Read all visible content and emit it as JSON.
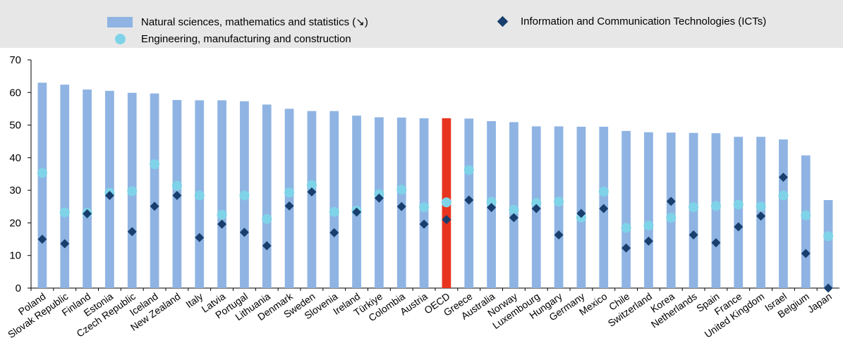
{
  "chart_data": {
    "type": "bar",
    "title": "",
    "xlabel": "",
    "ylabel": "",
    "ylim": [
      0,
      70
    ],
    "yticks": [
      0,
      10,
      20,
      30,
      40,
      50,
      60,
      70
    ],
    "grid": false,
    "legend_position": "top",
    "categories": [
      "Poland",
      "Slovak Republic",
      "Finland",
      "Estonia",
      "Czech Republic",
      "Iceland",
      "New Zealand",
      "Italy",
      "Latvia",
      "Portugal",
      "Lithuania",
      "Denmark",
      "Sweden",
      "Slovenia",
      "Ireland",
      "Türkiye",
      "Colombia",
      "Austria",
      "OECD",
      "Greece",
      "Australia",
      "Norway",
      "Luxembourg",
      "Hungary",
      "Germany",
      "Mexico",
      "Chile",
      "Switzerland",
      "Korea",
      "Netherlands",
      "Spain",
      "France",
      "United Kingdom",
      "Israel",
      "Belgium",
      "Japan"
    ],
    "highlight_category": "OECD",
    "series": [
      {
        "name": "Natural sciences, mathematics and statistics (↘)",
        "kind": "bar",
        "color": "#8fb4e3",
        "highlight_color": "#e8341f",
        "values": [
          63.0,
          62.4,
          60.9,
          60.5,
          59.9,
          59.7,
          57.7,
          57.6,
          57.6,
          57.3,
          56.3,
          55.0,
          54.3,
          54.3,
          52.9,
          52.4,
          52.3,
          52.1,
          52.1,
          52.0,
          51.2,
          50.9,
          49.6,
          49.6,
          49.5,
          49.5,
          48.2,
          47.8,
          47.7,
          47.6,
          47.5,
          46.4,
          46.4,
          45.6,
          40.7,
          27.0
        ]
      },
      {
        "name": "Information and Communication Technologies (ICTs)",
        "kind": "diamond",
        "color": "#183f6d",
        "values": [
          15.0,
          13.6,
          22.8,
          28.4,
          17.3,
          25.1,
          28.4,
          15.5,
          19.6,
          17.1,
          13.0,
          25.2,
          29.5,
          17.0,
          23.3,
          27.6,
          25.0,
          19.6,
          21.0,
          27.0,
          24.7,
          21.6,
          24.4,
          16.3,
          22.9,
          24.4,
          12.3,
          14.4,
          26.6,
          16.3,
          13.9,
          18.8,
          22.1,
          34.0,
          10.6,
          0.0
        ]
      },
      {
        "name": "Engineering, manufacturing and construction",
        "kind": "circle",
        "color": "#7fd3e8",
        "values": [
          35.3,
          23.2,
          23.1,
          29.2,
          29.7,
          38.0,
          31.4,
          28.4,
          22.5,
          28.4,
          21.2,
          29.3,
          31.6,
          23.4,
          23.8,
          28.8,
          30.2,
          24.8,
          26.3,
          36.2,
          26.4,
          24.0,
          26.1,
          26.5,
          21.6,
          29.6,
          18.5,
          19.2,
          21.6,
          24.8,
          25.2,
          25.6,
          25.0,
          28.4,
          22.3,
          15.9
        ]
      }
    ]
  }
}
